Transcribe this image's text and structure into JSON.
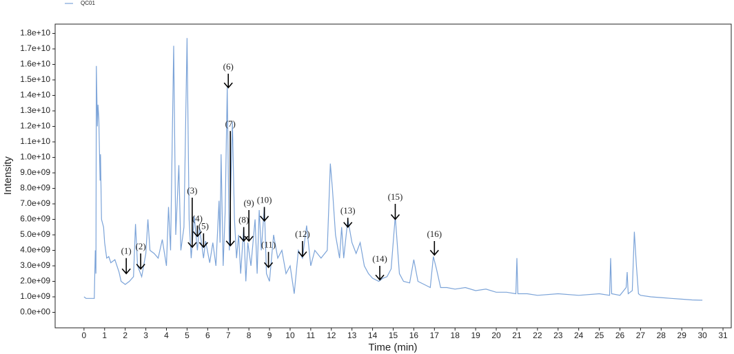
{
  "chart_data": {
    "type": "line",
    "x_label": "Time (min)",
    "y_label": "Intensity",
    "x": [
      0,
      0.1,
      0.5,
      0.52,
      0.55,
      0.58,
      0.6,
      0.65,
      0.68,
      0.72,
      0.78,
      0.8,
      0.85,
      0.95,
      1.0,
      1.1,
      1.2,
      1.3,
      1.5,
      1.7,
      1.8,
      2.0,
      2.2,
      2.4,
      2.5,
      2.6,
      2.8,
      3.0,
      3.1,
      3.2,
      3.4,
      3.6,
      3.8,
      4.0,
      4.1,
      4.2,
      4.35,
      4.45,
      4.6,
      4.7,
      4.85,
      5.0,
      5.1,
      5.2,
      5.35,
      5.5,
      5.6,
      5.8,
      5.9,
      6.1,
      6.25,
      6.4,
      6.55,
      6.6,
      6.65,
      6.75,
      6.85,
      6.95,
      7.05,
      7.2,
      7.3,
      7.4,
      7.5,
      7.6,
      7.75,
      7.85,
      7.95,
      8.1,
      8.3,
      8.4,
      8.5,
      8.6,
      8.75,
      8.85,
      9.0,
      9.2,
      9.4,
      9.6,
      9.8,
      10.0,
      10.2,
      10.4,
      10.6,
      10.8,
      11.0,
      11.2,
      11.5,
      11.8,
      11.95,
      12.05,
      12.2,
      12.4,
      12.5,
      12.6,
      12.8,
      13.0,
      13.2,
      13.4,
      13.6,
      13.8,
      14.0,
      14.3,
      14.5,
      14.7,
      14.9,
      15.1,
      15.3,
      15.5,
      15.8,
      16.0,
      16.2,
      16.5,
      16.8,
      16.95,
      17.1,
      17.3,
      17.6,
      18.0,
      18.5,
      19.0,
      19.5,
      20.0,
      20.5,
      20.95,
      21.0,
      21.05,
      21.5,
      22.0,
      23.0,
      24.0,
      25.0,
      25.5,
      25.55,
      25.6,
      26.0,
      26.3,
      26.35,
      26.4,
      26.6,
      26.7,
      26.8,
      26.9,
      27.0,
      27.5,
      28.0,
      28.5,
      29.0,
      29.5,
      30.0
    ],
    "series": [
      {
        "name": "QC01",
        "color": "#7ba3d8",
        "values": [
          1000000000.0,
          900000000.0,
          900000000.0,
          2200000000.0,
          4000000000.0,
          2500000000.0,
          15900000000.0,
          12000000000.0,
          13400000000.0,
          12500000000.0,
          8500000000.0,
          10200000000.0,
          6000000000.0,
          5500000000.0,
          4500000000.0,
          3500000000.0,
          3600000000.0,
          3200000000.0,
          3400000000.0,
          2600000000.0,
          2000000000.0,
          1800000000.0,
          2000000000.0,
          2300000000.0,
          5700000000.0,
          3000000000.0,
          2300000000.0,
          3800000000.0,
          6000000000.0,
          4000000000.0,
          3800000000.0,
          3500000000.0,
          4700000000.0,
          3000000000.0,
          6800000000.0,
          4000000000.0,
          17200000000.0,
          5000000000.0,
          9500000000.0,
          4000000000.0,
          5500000000.0,
          17700000000.0,
          6000000000.0,
          3500000000.0,
          6200000000.0,
          4000000000.0,
          5500000000.0,
          3500000000.0,
          4600000000.0,
          3200000000.0,
          4500000000.0,
          3000000000.0,
          7200000000.0,
          4500000000.0,
          10200000000.0,
          3000000000.0,
          6500000000.0,
          14500000000.0,
          4000000000.0,
          12300000000.0,
          6000000000.0,
          3500000000.0,
          5000000000.0,
          2500000000.0,
          5500000000.0,
          2000000000.0,
          4500000000.0,
          3000000000.0,
          6000000000.0,
          2500000000.0,
          6600000000.0,
          4000000000.0,
          6800000000.0,
          2500000000.0,
          2000000000.0,
          5000000000.0,
          3500000000.0,
          4000000000.0,
          2500000000.0,
          3000000000.0,
          1200000000.0,
          4000000000.0,
          3500000000.0,
          5600000000.0,
          3000000000.0,
          4000000000.0,
          3500000000.0,
          4000000000.0,
          9600000000.0,
          8000000000.0,
          5000000000.0,
          3500000000.0,
          5500000000.0,
          3500000000.0,
          6000000000.0,
          4500000000.0,
          3800000000.0,
          4500000000.0,
          3000000000.0,
          2500000000.0,
          2200000000.0,
          2000000000.0,
          2200000000.0,
          2300000000.0,
          2800000000.0,
          6200000000.0,
          2500000000.0,
          2000000000.0,
          1900000000.0,
          3400000000.0,
          2000000000.0,
          1800000000.0,
          1600000000.0,
          3600000000.0,
          2800000000.0,
          1600000000.0,
          1600000000.0,
          1500000000.0,
          1600000000.0,
          1400000000.0,
          1500000000.0,
          1300000000.0,
          1300000000.0,
          1200000000.0,
          3500000000.0,
          1200000000.0,
          1200000000.0,
          1100000000.0,
          1200000000.0,
          1100000000.0,
          1200000000.0,
          1100000000.0,
          3500000000.0,
          1200000000.0,
          1100000000.0,
          1600000000.0,
          2600000000.0,
          1200000000.0,
          1400000000.0,
          5200000000.0,
          3000000000.0,
          1200000000.0,
          1100000000.0,
          1000000000.0,
          950000000.0,
          900000000.0,
          850000000.0,
          800000000.0,
          780000000.0
        ]
      }
    ],
    "xlim": [
      -1.4,
      31.4
    ],
    "ylim": [
      -1000000000.0,
      18600000000.0
    ],
    "xticks": [
      0,
      1,
      2,
      3,
      4,
      5,
      6,
      7,
      8,
      9,
      10,
      11,
      12,
      13,
      14,
      15,
      16,
      17,
      18,
      19,
      20,
      21,
      22,
      23,
      24,
      25,
      26,
      27,
      28,
      29,
      30,
      31
    ],
    "yticks": [
      {
        "value": 0,
        "label": "0.0e+00"
      },
      {
        "value": 1000000000.0,
        "label": "1.0e+09"
      },
      {
        "value": 2000000000.0,
        "label": "2.0e+09"
      },
      {
        "value": 3000000000.0,
        "label": "3.0e+09"
      },
      {
        "value": 4000000000.0,
        "label": "4.0e+09"
      },
      {
        "value": 5000000000.0,
        "label": "5.0e+09"
      },
      {
        "value": 6000000000.0,
        "label": "6.0e+09"
      },
      {
        "value": 7000000000.0,
        "label": "7.0e+09"
      },
      {
        "value": 8000000000.0,
        "label": "8.0e+09"
      },
      {
        "value": 9000000000.0,
        "label": "9.0e+09"
      },
      {
        "value": 10000000000.0,
        "label": "1.0e+10"
      },
      {
        "value": 11000000000.0,
        "label": "1.1e+10"
      },
      {
        "value": 12000000000.0,
        "label": "1.2e+10"
      },
      {
        "value": 13000000000.0,
        "label": "1.3e+10"
      },
      {
        "value": 14000000000.0,
        "label": "1.4e+10"
      },
      {
        "value": 15000000000.0,
        "label": "1.5e+10"
      },
      {
        "value": 16000000000.0,
        "label": "1.6e+10"
      },
      {
        "value": 17000000000.0,
        "label": "1.7e+10"
      },
      {
        "value": 18000000000.0,
        "label": "1.8e+10"
      }
    ],
    "grid": false,
    "legend": "top-left",
    "annotations": [
      {
        "label": "(1)",
        "x": 2.05,
        "y": 2500000000.0,
        "label_y": 3900000000.0
      },
      {
        "label": "(2)",
        "x": 2.75,
        "y": 2800000000.0,
        "label_y": 4200000000.0
      },
      {
        "label": "(3)",
        "x": 5.25,
        "y": 4200000000.0,
        "label_y": 7800000000.0
      },
      {
        "label": "(4)",
        "x": 5.5,
        "y": 4900000000.0,
        "label_y": 6000000000.0
      },
      {
        "label": "(5)",
        "x": 5.8,
        "y": 4200000000.0,
        "label_y": 5500000000.0
      },
      {
        "label": "(6)",
        "x": 7.0,
        "y": 14500000000.0,
        "label_y": 15800000000.0
      },
      {
        "label": "(7)",
        "x": 7.1,
        "y": 4300000000.0,
        "label_y": 12100000000.0
      },
      {
        "label": "(8)",
        "x": 7.75,
        "y": 4600000000.0,
        "label_y": 5900000000.0
      },
      {
        "label": "(9)",
        "x": 8.0,
        "y": 4600000000.0,
        "label_y": 7000000000.0
      },
      {
        "label": "(10)",
        "x": 8.75,
        "y": 5900000000.0,
        "label_y": 7200000000.0
      },
      {
        "label": "(11)",
        "x": 8.95,
        "y": 2900000000.0,
        "label_y": 4300000000.0
      },
      {
        "label": "(12)",
        "x": 10.6,
        "y": 3600000000.0,
        "label_y": 5000000000.0
      },
      {
        "label": "(13)",
        "x": 12.8,
        "y": 5500000000.0,
        "label_y": 6500000000.0
      },
      {
        "label": "(14)",
        "x": 14.35,
        "y": 2100000000.0,
        "label_y": 3400000000.0
      },
      {
        "label": "(15)",
        "x": 15.1,
        "y": 6000000000.0,
        "label_y": 7400000000.0
      },
      {
        "label": "(16)",
        "x": 17.0,
        "y": 3700000000.0,
        "label_y": 5000000000.0
      }
    ]
  }
}
